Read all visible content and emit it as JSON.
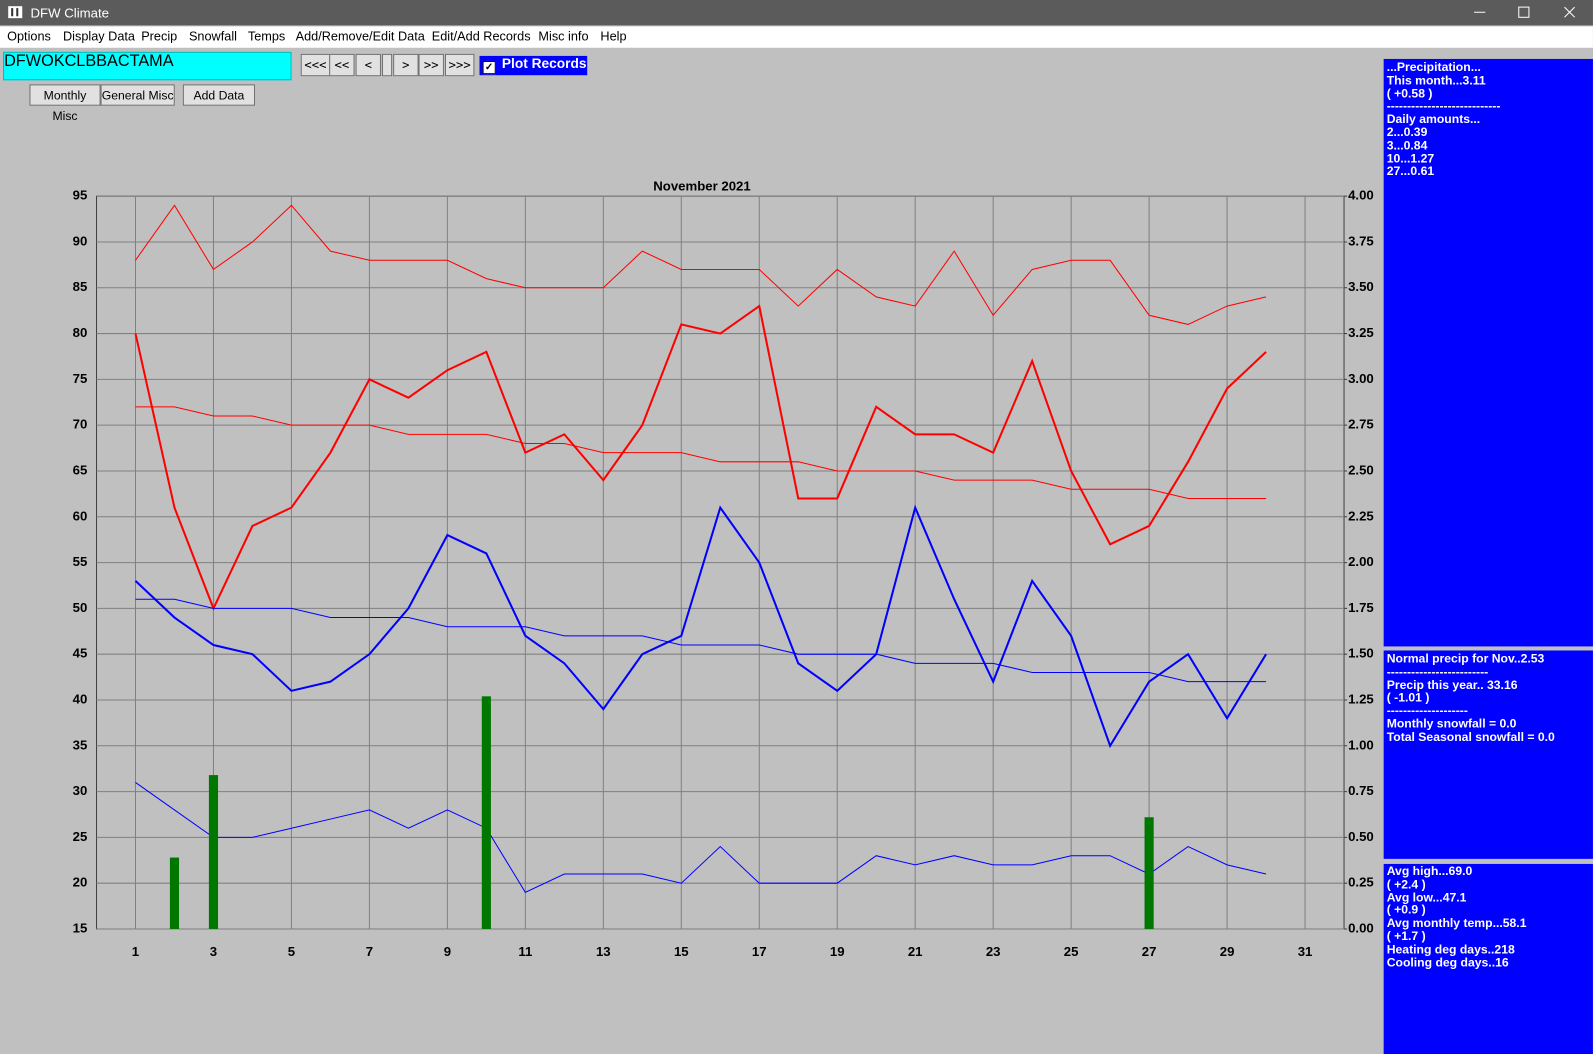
{
  "window": {
    "title": "DFW Climate",
    "menu": [
      "Options",
      "Display Data",
      "Precip",
      "Snowfall",
      "Temps",
      "Add/Remove/Edit Data",
      "Edit/Add Records",
      "Misc info",
      "Help"
    ],
    "stations": [
      {
        "label": "DFW",
        "selected": true
      },
      {
        "label": "OKC",
        "selected": false
      },
      {
        "label": "LBB",
        "selected": false
      },
      {
        "label": "ACT",
        "selected": false
      },
      {
        "label": "AMA",
        "selected": false
      }
    ],
    "nav_buttons": [
      "<<<",
      "<<",
      "<",
      ">",
      ">>",
      ">>>"
    ],
    "plot_records": {
      "label": "Plot Records",
      "checked": true
    },
    "buttons": [
      "Monthly Misc",
      "General Misc",
      "Add Data"
    ]
  },
  "chart_data": {
    "type": "line",
    "title": "November 2021",
    "xlim": [
      0,
      32
    ],
    "xticks": [
      1,
      3,
      5,
      7,
      9,
      11,
      13,
      15,
      17,
      19,
      21,
      23,
      25,
      27,
      29,
      31
    ],
    "ylim": [
      15,
      95
    ],
    "yticks": [
      15,
      20,
      25,
      30,
      35,
      40,
      45,
      50,
      55,
      60,
      65,
      70,
      75,
      80,
      85,
      90,
      95
    ],
    "y2lim": [
      0,
      4
    ],
    "y2ticks": [
      {
        "value": 0,
        "label": "0.00"
      },
      {
        "value": 0.25,
        "label": "0.25"
      },
      {
        "value": 0.5,
        "label": "0.50"
      },
      {
        "value": 0.75,
        "label": "0.75"
      },
      {
        "value": 1,
        "label": "1.00"
      },
      {
        "value": 1.25,
        "label": "1.25"
      },
      {
        "value": 1.5,
        "label": "1.50"
      },
      {
        "value": 1.75,
        "label": "1.75"
      },
      {
        "value": 2,
        "label": "2.00"
      },
      {
        "value": 2.25,
        "label": "2.25"
      },
      {
        "value": 2.5,
        "label": "2.50"
      },
      {
        "value": 2.75,
        "label": "2.75"
      },
      {
        "value": 3,
        "label": "3.00"
      },
      {
        "value": 3.25,
        "label": "3.25"
      },
      {
        "value": 3.5,
        "label": "3.50"
      },
      {
        "value": 3.75,
        "label": "3.75"
      },
      {
        "value": 4,
        "label": "4.00"
      }
    ],
    "grid": true,
    "x": [
      1,
      2,
      3,
      4,
      5,
      6,
      7,
      8,
      9,
      10,
      11,
      12,
      13,
      14,
      15,
      16,
      17,
      18,
      19,
      20,
      21,
      22,
      23,
      24,
      25,
      26,
      27,
      28,
      29,
      30
    ],
    "series": [
      {
        "color": "#ff0000",
        "width": 1,
        "values": [
          88,
          94,
          87,
          90,
          94,
          89,
          88,
          88,
          88,
          86,
          85,
          85,
          85,
          89,
          87,
          87,
          87,
          83,
          87,
          84,
          83,
          89,
          82,
          87,
          88,
          88,
          82,
          81,
          83,
          84
        ]
      },
      {
        "color": "#ff0000",
        "width": 2,
        "values": [
          80,
          61,
          50,
          59,
          61,
          67,
          75,
          73,
          76,
          78,
          67,
          69,
          64,
          70,
          81,
          80,
          83,
          62,
          62,
          72,
          69,
          69,
          67,
          77,
          65,
          57,
          59,
          66,
          74,
          78
        ]
      },
      {
        "color": "#ff0000",
        "width": 1,
        "values": [
          72,
          72,
          71,
          71,
          70,
          70,
          70,
          69,
          69,
          69,
          68,
          68,
          67,
          67,
          67,
          66,
          66,
          66,
          65,
          65,
          65,
          64,
          64,
          64,
          63,
          63,
          63,
          62,
          62,
          62
        ]
      },
      {
        "color": "#0000ff",
        "width": 2,
        "values": [
          53,
          49,
          46,
          45,
          41,
          42,
          45,
          50,
          58,
          56,
          47,
          44,
          39,
          45,
          47,
          61,
          55,
          44,
          41,
          45,
          61,
          51,
          42,
          53,
          47,
          35,
          42,
          45,
          38,
          45
        ]
      },
      {
        "color": "#0000ff",
        "width": 1,
        "values": [
          51,
          51,
          50,
          50,
          50,
          49,
          49,
          49,
          48,
          48,
          48,
          47,
          47,
          47,
          46,
          46,
          46,
          45,
          45,
          45,
          44,
          44,
          44,
          43,
          43,
          43,
          43,
          42,
          42,
          42
        ]
      },
      {
        "color": "#0000ff",
        "width": 1,
        "values": [
          31,
          28,
          25,
          25,
          26,
          27,
          28,
          26,
          28,
          26,
          19,
          21,
          21,
          21,
          20,
          24,
          20,
          20,
          20,
          23,
          22,
          23,
          22,
          22,
          23,
          23,
          21,
          24,
          22,
          21
        ]
      },
      {
        "type": "bar",
        "axis": "y2",
        "color": "#007800",
        "x": [
          2,
          3,
          10,
          27
        ],
        "values": [
          0.39,
          0.84,
          1.27,
          0.61
        ]
      }
    ]
  },
  "info_panel": {
    "top": [
      "...Precipitation...",
      "This month...3.11",
      "( +0.58 )",
      "----------------------------",
      "Daily amounts...",
      "2...0.39",
      "3...0.84",
      "10...1.27",
      "27...0.61"
    ],
    "middle": [
      "Normal precip for Nov..2.53",
      "-------------------------",
      "Precip this year.. 33.16",
      "( -1.01 )",
      "--------------------",
      "Monthly snowfall = 0.0",
      "Total Seasonal snowfall = 0.0"
    ],
    "bottom": [
      "Avg high...69.0",
      "( +2.4 )",
      "Avg low...47.1",
      "( +0.9 )",
      "Avg monthly temp...58.1",
      "( +1.7 )",
      "Heating deg days..218",
      "Cooling deg days..16"
    ]
  }
}
